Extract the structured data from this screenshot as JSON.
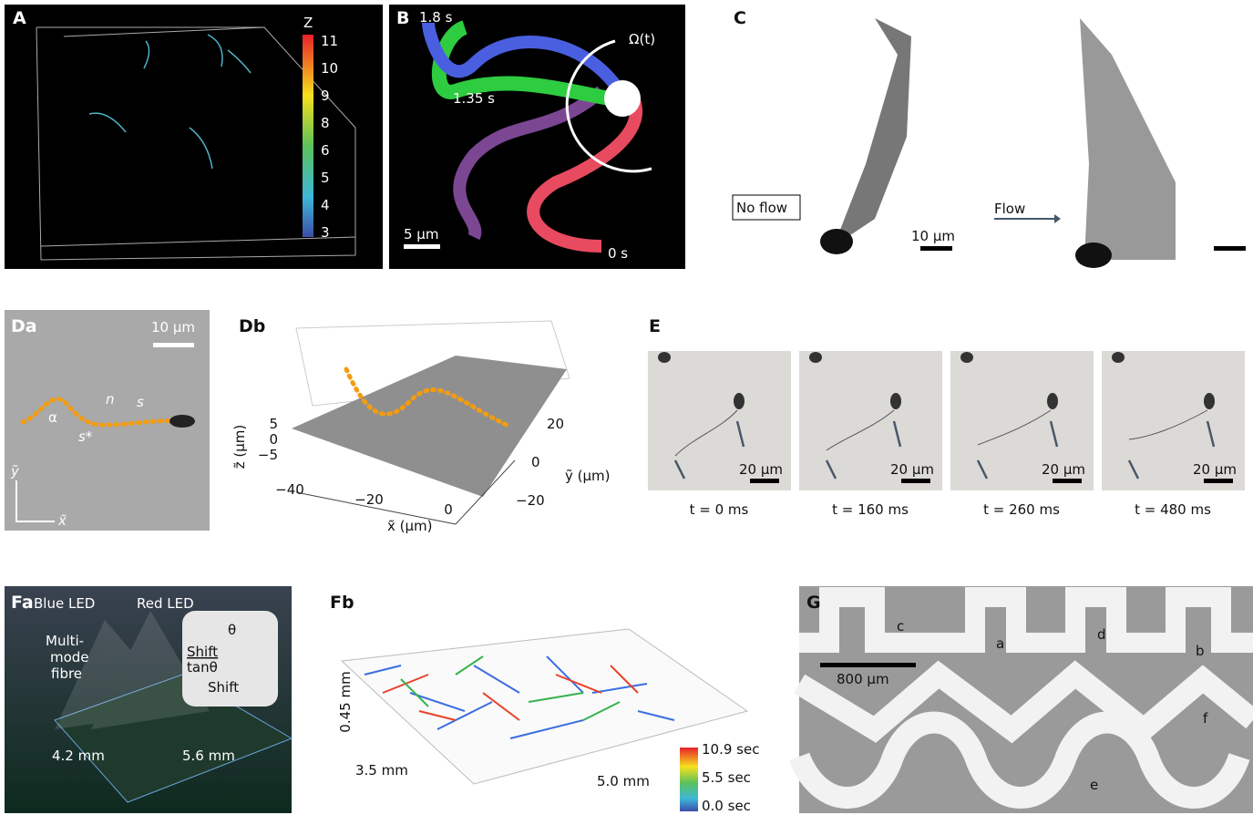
{
  "panels": {
    "A": {
      "label": "A",
      "colorbar_title": "Z",
      "colorbar_ticks": [
        "11",
        "10",
        "9",
        "8",
        "6",
        "5",
        "4",
        "3"
      ]
    },
    "B": {
      "label": "B",
      "time_top": "1.8 s",
      "time_mid": "1.35 s",
      "omega": "Ω(t)",
      "scale": "5 µm",
      "time_end": "0 s"
    },
    "C": {
      "label": "C",
      "no_flow": "No flow",
      "scale": "10 µm",
      "flow": "Flow"
    },
    "Da": {
      "label": "Da",
      "scale": "10 µm",
      "alpha": "α",
      "n": "n",
      "s": "s",
      "s_star": "s*",
      "y_axis": "ỹ",
      "x_axis": "x̃"
    },
    "Db": {
      "label": "Db",
      "z_label": "z̃ (µm)",
      "z_ticks": [
        "5",
        "0",
        "−5"
      ],
      "x_label": "x̃ (µm)",
      "x_ticks": [
        "−40",
        "−20",
        "0"
      ],
      "y_label": "ỹ (µm)",
      "y_ticks": [
        "20",
        "0",
        "−20"
      ]
    },
    "E": {
      "label": "E",
      "frames": [
        {
          "scale": "20 µm",
          "caption": "t = 0 ms"
        },
        {
          "scale": "20 µm",
          "caption": "t = 160 ms"
        },
        {
          "scale": "20 µm",
          "caption": "t = 260 ms"
        },
        {
          "scale": "20 µm",
          "caption": "t = 480 ms"
        }
      ]
    },
    "Fa": {
      "label": "Fa",
      "blue_led": "Blue LED",
      "red_led": "Red LED",
      "fibre": [
        "Multi-",
        "mode",
        "fibre"
      ],
      "theta": "θ",
      "shift_num": "Shift",
      "shift_den": "tanθ",
      "shift": "Shift",
      "width": "4.2 mm",
      "length": "5.6 mm"
    },
    "Fb": {
      "label": "Fb",
      "height": "0.45 mm",
      "depth": "3.5 mm",
      "width": "5.0 mm",
      "colorbar": [
        "10.9 sec",
        "5.5 sec",
        "0.0 sec"
      ]
    },
    "G": {
      "label": "G",
      "scale": "800 µm",
      "markers": [
        "c",
        "a",
        "d",
        "b",
        "f",
        "e"
      ]
    }
  }
}
